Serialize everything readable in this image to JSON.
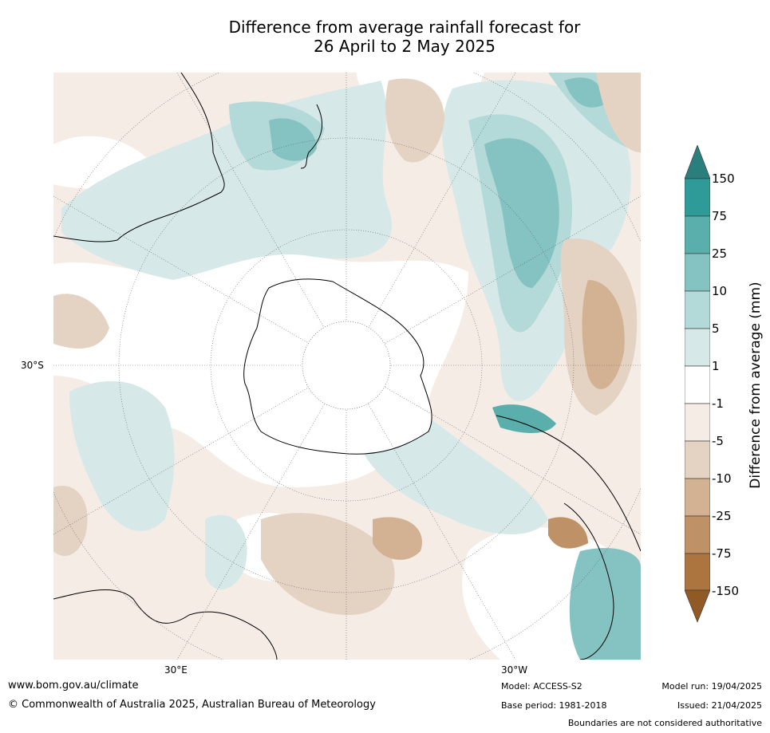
{
  "title_line1": "Difference from average rainfall forecast for",
  "title_line2": "26 April to 2 May 2025",
  "map_labels": {
    "lat_30s": "30°S",
    "lon_30e": "30°E",
    "lon_30w": "30°W"
  },
  "colorbar": {
    "label": "Difference from average (mm)",
    "ticks": [
      "150",
      "75",
      "25",
      "10",
      "5",
      "1",
      "-1",
      "-5",
      "-10",
      "-25",
      "-75",
      "-150"
    ],
    "colors": {
      "over": "#2a7f7d",
      "75_150": "#2f9b98",
      "25_75": "#5aaeac",
      "10_25": "#85c3c2",
      "5_10": "#b3d9d8",
      "1_5": "#d6e9e8",
      "neutral": "#ffffff",
      "m5_m1": "#f4ece5",
      "m10_m5": "#e4d2c2",
      "m25_m10": "#d2b293",
      "m75_m25": "#bf9167",
      "m150_m75": "#ac743f",
      "under": "#8f5a25"
    }
  },
  "footer": {
    "url": "www.bom.gov.au/climate",
    "copyright": "© Commonwealth of Australia 2025, Australian Bureau of Meteorology",
    "model": "Model: ACCESS-S2",
    "base_period": "Base period: 1981-2018",
    "model_run": "Model run: 19/04/2025",
    "issued": "Issued: 21/04/2025",
    "disclaimer": "Boundaries are not considered authoritative"
  }
}
